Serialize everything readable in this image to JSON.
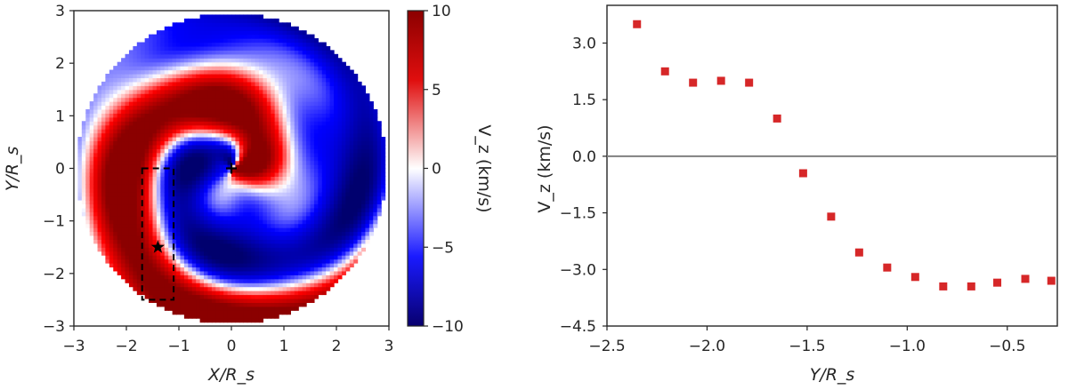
{
  "chart_data": [
    {
      "type": "heatmap",
      "xlabel": "X/R_s",
      "ylabel": "Y/R_s",
      "xlim": [
        -3,
        3
      ],
      "ylim": [
        -3,
        3
      ],
      "xticks": [
        "−3",
        "−2",
        "−1",
        "0",
        "1",
        "2",
        "3"
      ],
      "yticks": [
        "3",
        "2",
        "1",
        "0",
        "−1",
        "−2",
        "−3"
      ],
      "colorbar": {
        "label": "V_z (km/s)",
        "range": [
          -10,
          10
        ],
        "ticks": [
          "10",
          "5",
          "0",
          "−5",
          "−10"
        ],
        "colors": {
          "low": "#08006e",
          "mid": "#ffffff",
          "high": "#8b0000"
        }
      },
      "annotations": {
        "plus_marker": {
          "x": 0,
          "y": 0
        },
        "star_marker": {
          "x": -1.4,
          "y": -1.5
        },
        "dashed_box": {
          "x0": -1.7,
          "x1": -1.1,
          "y0": -2.5,
          "y1": 0
        }
      }
    },
    {
      "type": "scatter",
      "xlabel": "Y/R_s",
      "ylabel": "V_z (km/s)",
      "xlim": [
        -2.5,
        -0.25
      ],
      "ylim": [
        -4.5,
        4.0
      ],
      "xticks": [
        "−2.5",
        "−2.0",
        "−1.5",
        "−1.0",
        "−0.5"
      ],
      "yticks": [
        "3.0",
        "1.5",
        "0.0",
        "−1.5",
        "−3.0",
        "−4.5"
      ],
      "zero_line": true,
      "marker_color": "#d62728",
      "series": [
        {
          "x": [
            -2.35,
            -2.21,
            -2.07,
            -1.93,
            -1.79,
            -1.65,
            -1.52,
            -1.38,
            -1.24,
            -1.1,
            -0.96,
            -0.82,
            -0.68,
            -0.55,
            -0.41,
            -0.28
          ],
          "y": [
            3.5,
            2.25,
            1.95,
            2.0,
            1.95,
            1.0,
            -0.45,
            -1.6,
            -2.55,
            -2.95,
            -3.2,
            -3.45,
            -3.45,
            -3.35,
            -3.25,
            -3.3
          ]
        }
      ]
    }
  ]
}
